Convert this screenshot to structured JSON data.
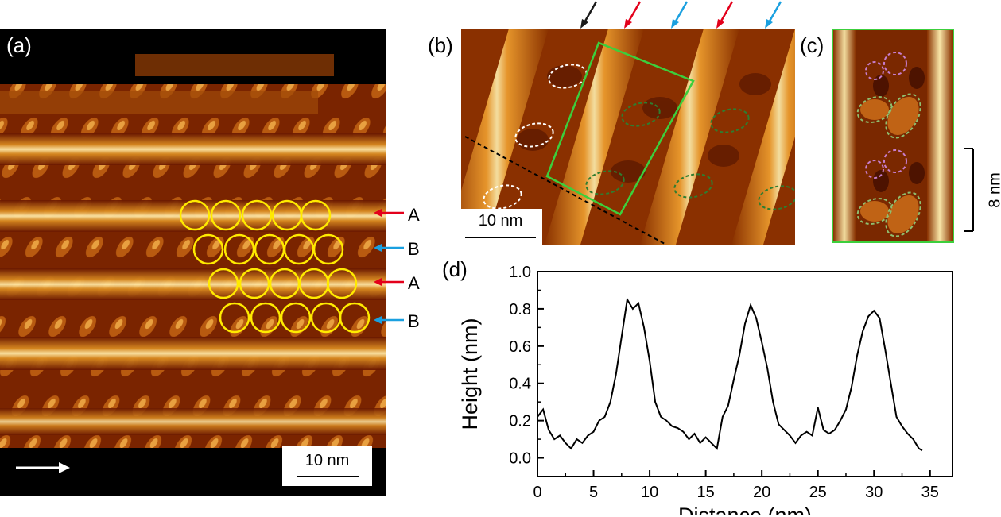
{
  "panel_a": {
    "label": "(a)",
    "scale_bar": "10 nm",
    "row_labels": [
      "A",
      "B",
      "A",
      "B"
    ],
    "colors": {
      "circle": "#ffea00",
      "A": "#e3001b",
      "B": "#1aa0e0",
      "scan_arrow": "#ffffff"
    }
  },
  "panel_b": {
    "label": "(b)",
    "scale_bar": "10 nm",
    "top_arrow_colors": [
      "#1a1a1a",
      "#e3001b",
      "#1aa0e0",
      "#e3001b",
      "#1aa0e0"
    ],
    "colors": {
      "box": "#3ccf3c",
      "white_ellipse": "#ffffff",
      "green_ellipse": "#2f7d2f",
      "line": "#000000"
    }
  },
  "panel_c": {
    "label": "(c)",
    "scale_bar": "8 nm",
    "colors": {
      "frame": "#3ccf3c",
      "pink_circle": "#c77dcc",
      "green_ellipse": "#8fbf6f"
    }
  },
  "panel_d": {
    "label": "(d)",
    "chart_data": {
      "type": "line",
      "xlabel": "Distance (nm)",
      "ylabel": "Height (nm)",
      "xlim": [
        0,
        37
      ],
      "ylim": [
        -0.1,
        1.0
      ],
      "xticks": [
        0,
        5,
        10,
        15,
        20,
        25,
        30,
        35
      ],
      "yticks": [
        0.0,
        0.2,
        0.4,
        0.6,
        0.8,
        1.0
      ],
      "ytick_labels": [
        "0.0",
        "0.2",
        "0.4",
        "0.6",
        "0.8",
        "1.0"
      ],
      "series": [
        {
          "color": "#000000",
          "x": [
            0,
            0.5,
            1.0,
            1.5,
            2.0,
            2.5,
            3.0,
            3.5,
            4.0,
            4.5,
            5.0,
            5.5,
            6.0,
            6.5,
            7.0,
            7.5,
            8.0,
            8.5,
            9.0,
            9.5,
            10.0,
            10.5,
            11.0,
            11.5,
            12.0,
            12.5,
            13.0,
            13.5,
            14.0,
            14.5,
            15.0,
            15.5,
            16.0,
            16.5,
            17.0,
            17.5,
            18.0,
            18.5,
            19.0,
            19.5,
            20.0,
            20.5,
            21.0,
            21.5,
            22.0,
            22.5,
            23.0,
            23.5,
            24.0,
            24.5,
            25.0,
            25.5,
            26.0,
            26.5,
            27.0,
            27.5,
            28.0,
            28.5,
            29.0,
            29.5,
            30.0,
            30.5,
            31.0,
            31.5,
            32.0,
            32.5,
            33.0,
            33.5,
            34.0,
            34.3
          ],
          "y": [
            0.22,
            0.26,
            0.15,
            0.1,
            0.12,
            0.08,
            0.05,
            0.1,
            0.08,
            0.12,
            0.14,
            0.2,
            0.22,
            0.3,
            0.45,
            0.65,
            0.85,
            0.8,
            0.83,
            0.7,
            0.52,
            0.3,
            0.22,
            0.2,
            0.17,
            0.16,
            0.14,
            0.1,
            0.13,
            0.08,
            0.11,
            0.08,
            0.05,
            0.22,
            0.28,
            0.42,
            0.55,
            0.72,
            0.82,
            0.75,
            0.62,
            0.48,
            0.3,
            0.18,
            0.15,
            0.12,
            0.08,
            0.12,
            0.14,
            0.12,
            0.27,
            0.15,
            0.13,
            0.15,
            0.2,
            0.26,
            0.38,
            0.55,
            0.68,
            0.76,
            0.79,
            0.75,
            0.58,
            0.4,
            0.22,
            0.17,
            0.13,
            0.1,
            0.05,
            0.04
          ]
        }
      ]
    }
  }
}
